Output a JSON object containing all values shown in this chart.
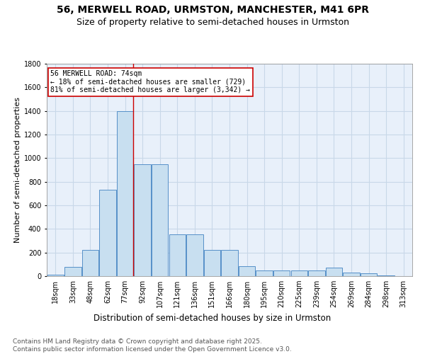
{
  "title1": "56, MERWELL ROAD, URMSTON, MANCHESTER, M41 6PR",
  "title2": "Size of property relative to semi-detached houses in Urmston",
  "xlabel": "Distribution of semi-detached houses by size in Urmston",
  "ylabel": "Number of semi-detached properties",
  "footer1": "Contains HM Land Registry data © Crown copyright and database right 2025.",
  "footer2": "Contains public sector information licensed under the Open Government Licence v3.0.",
  "bin_labels": [
    "18sqm",
    "33sqm",
    "48sqm",
    "62sqm",
    "77sqm",
    "92sqm",
    "107sqm",
    "121sqm",
    "136sqm",
    "151sqm",
    "166sqm",
    "180sqm",
    "195sqm",
    "210sqm",
    "225sqm",
    "239sqm",
    "254sqm",
    "269sqm",
    "284sqm",
    "298sqm",
    "313sqm"
  ],
  "bar_values": [
    10,
    80,
    220,
    730,
    1400,
    950,
    950,
    355,
    355,
    220,
    220,
    85,
    50,
    50,
    50,
    50,
    70,
    30,
    25,
    5,
    2
  ],
  "bar_color": "#c8dff0",
  "bar_edge_color": "#5590c8",
  "annotation_line1": "56 MERWELL ROAD: 74sqm",
  "annotation_line2": "← 18% of semi-detached houses are smaller (729)",
  "annotation_line3": "81% of semi-detached houses are larger (3,342) →",
  "annotation_box_color": "#ffffff",
  "annotation_box_edge_color": "#cc0000",
  "vline_x": 4.45,
  "vline_color": "#cc0000",
  "ylim": [
    0,
    1800
  ],
  "yticks": [
    0,
    200,
    400,
    600,
    800,
    1000,
    1200,
    1400,
    1600,
    1800
  ],
  "grid_color": "#c8d8e8",
  "bg_color": "#e8f0fa",
  "title1_fontsize": 10,
  "title2_fontsize": 9,
  "xlabel_fontsize": 8.5,
  "ylabel_fontsize": 8,
  "tick_fontsize": 7,
  "annotation_fontsize": 7,
  "footer_fontsize": 6.5
}
